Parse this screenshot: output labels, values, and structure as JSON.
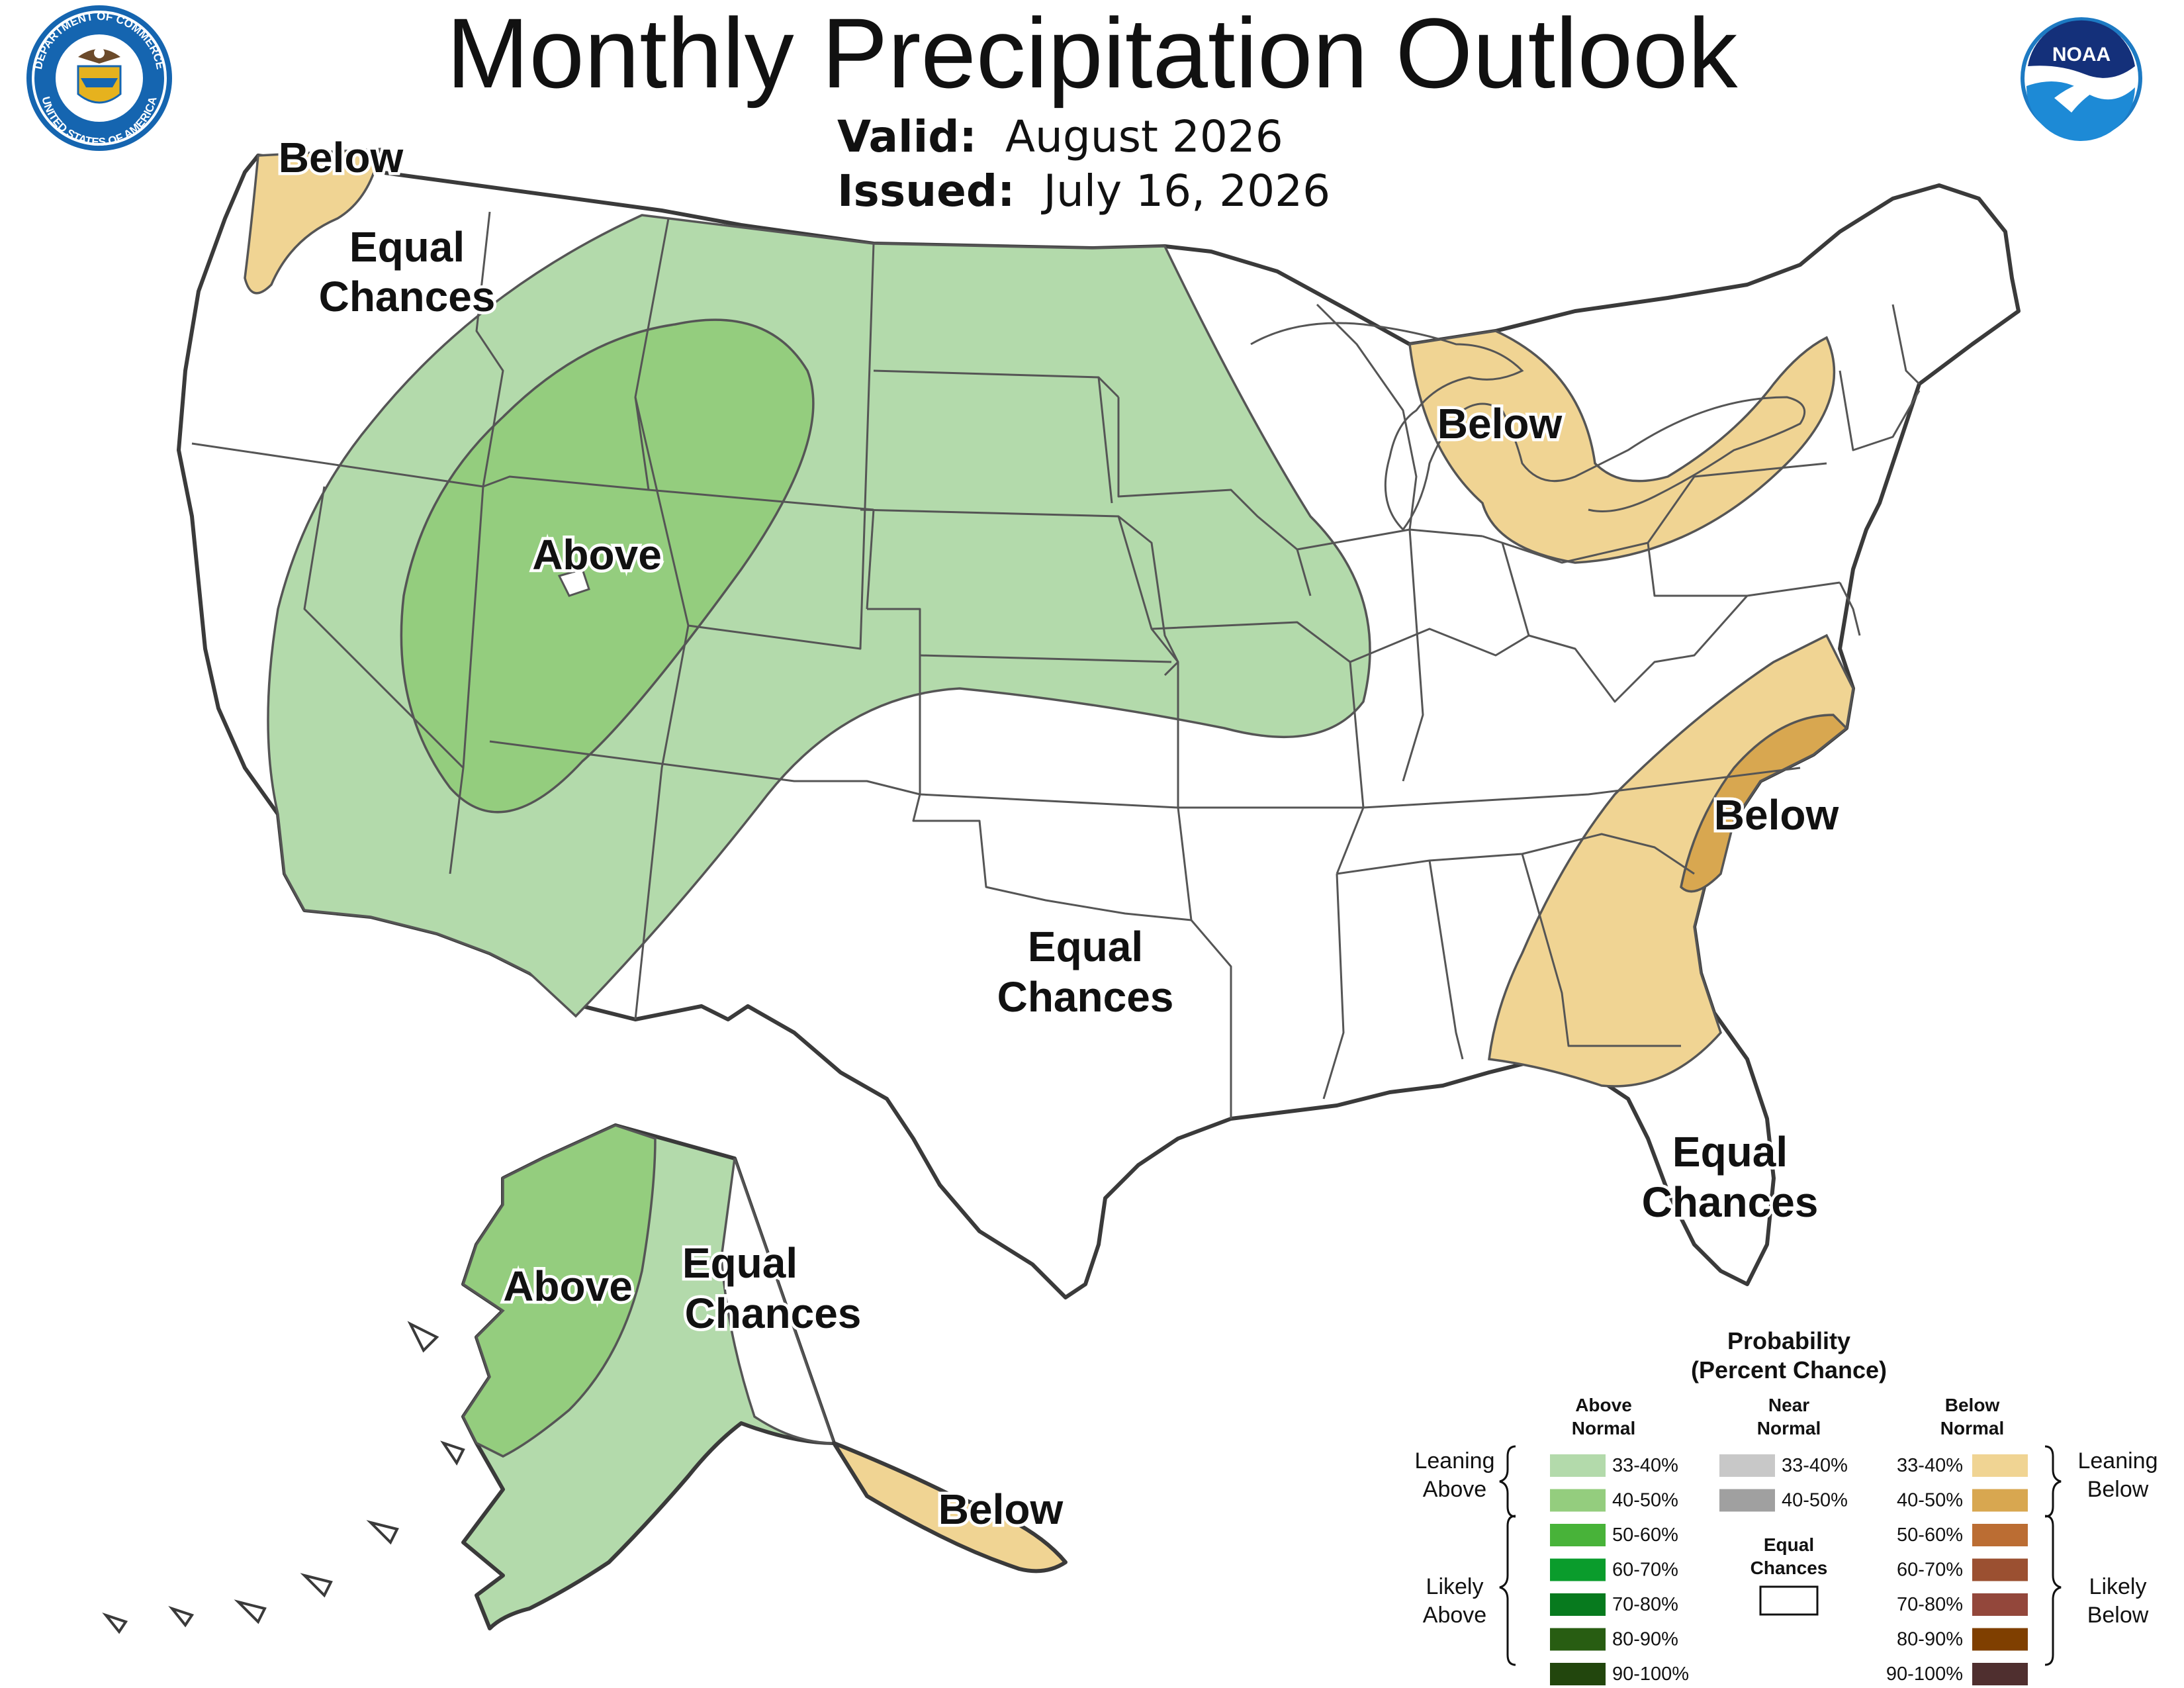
{
  "title": "Monthly Precipitation Outlook",
  "valid_label": "Valid:",
  "valid_value": "August 2026",
  "issued_label": "Issued:",
  "issued_value": "July 16, 2026",
  "logos": {
    "commerce_top": "DEPARTMENT OF COMMERCE",
    "commerce_bottom": "UNITED STATES OF AMERICA",
    "noaa": "NOAA"
  },
  "map_labels": [
    {
      "id": "nw-below",
      "text": "Below"
    },
    {
      "id": "nw-equal-1",
      "text": "Equal"
    },
    {
      "id": "nw-equal-2",
      "text": "Chances"
    },
    {
      "id": "west-above",
      "text": "Above"
    },
    {
      "id": "greatlakes-below",
      "text": "Below"
    },
    {
      "id": "southeast-below",
      "text": "Below"
    },
    {
      "id": "central-equal-1",
      "text": "Equal"
    },
    {
      "id": "central-equal-2",
      "text": "Chances"
    },
    {
      "id": "florida-equal-1",
      "text": "Equal"
    },
    {
      "id": "florida-equal-2",
      "text": "Chances"
    },
    {
      "id": "ak-above",
      "text": "Above"
    },
    {
      "id": "ak-equal-1",
      "text": "Equal"
    },
    {
      "id": "ak-equal-2",
      "text": "Chances"
    },
    {
      "id": "ak-below",
      "text": "Below"
    }
  ],
  "legend": {
    "title_1": "Probability",
    "title_2": "(Percent Chance)",
    "above_head_1": "Above",
    "above_head_2": "Normal",
    "near_head_1": "Near",
    "near_head_2": "Normal",
    "below_head_1": "Below",
    "below_head_2": "Normal",
    "equal_1": "Equal",
    "equal_2": "Chances",
    "leaning_above_1": "Leaning",
    "leaning_above_2": "Above",
    "likely_above_1": "Likely",
    "likely_above_2": "Above",
    "leaning_below_1": "Leaning",
    "leaning_below_2": "Below",
    "likely_below_1": "Likely",
    "likely_below_2": "Below",
    "above_bins": [
      {
        "label": "33-40%",
        "color": "#b3daab"
      },
      {
        "label": "40-50%",
        "color": "#94cd7e"
      },
      {
        "label": "50-60%",
        "color": "#48b339"
      },
      {
        "label": "60-70%",
        "color": "#0a9c2c"
      },
      {
        "label": "70-80%",
        "color": "#077a1e"
      },
      {
        "label": "80-90%",
        "color": "#285d12"
      },
      {
        "label": "90-100%",
        "color": "#22460d"
      }
    ],
    "near_bins": [
      {
        "label": "33-40%",
        "color": "#c8c8c8"
      },
      {
        "label": "40-50%",
        "color": "#a0a0a0"
      }
    ],
    "below_bins": [
      {
        "label": "33-40%",
        "color": "#f0d493"
      },
      {
        "label": "40-50%",
        "color": "#d8a750"
      },
      {
        "label": "50-60%",
        "color": "#bb6d33"
      },
      {
        "label": "60-70%",
        "color": "#9b5031"
      },
      {
        "label": "70-80%",
        "color": "#93473b"
      },
      {
        "label": "80-90%",
        "color": "#7f3f00"
      },
      {
        "label": "90-100%",
        "color": "#4f2f2f"
      }
    ]
  }
}
